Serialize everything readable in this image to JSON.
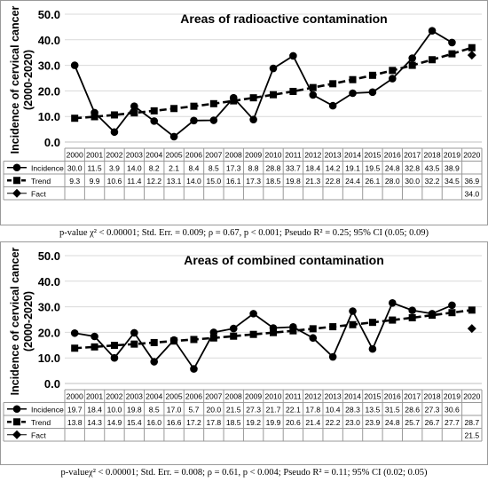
{
  "chart_data": [
    {
      "type": "line",
      "title": "Areas of radioactive contamination",
      "ylabel": "Incidence of cervical cancer (2000-2020)",
      "ylabel_lines": [
        "Incidence of cervical cancer",
        "(2000-2020)"
      ],
      "ylim": [
        0,
        50
      ],
      "yticks": [
        "0.0",
        "10.0",
        "20.0",
        "30.0",
        "40.0",
        "50.0"
      ],
      "categories": [
        "2000",
        "2001",
        "2002",
        "2003",
        "2004",
        "2005",
        "2006",
        "2007",
        "2008",
        "2009",
        "2010",
        "2011",
        "2012",
        "2013",
        "2014",
        "2015",
        "2016",
        "2017",
        "2018",
        "2019",
        "2020"
      ],
      "series": [
        {
          "name": "Incidence",
          "marker": "circle",
          "line": "solid",
          "values": [
            30.0,
            11.5,
            3.9,
            14.0,
            8.2,
            2.1,
            8.4,
            8.5,
            17.3,
            8.8,
            28.8,
            33.7,
            18.4,
            14.2,
            19.1,
            19.5,
            24.8,
            32.8,
            43.5,
            38.9,
            null
          ],
          "labels": [
            "30.0",
            "11.5",
            "3.9",
            "14.0",
            "8.2",
            "2.1",
            "8.4",
            "8.5",
            "17.3",
            "8.8",
            "28.8",
            "33.7",
            "18.4",
            "14.2",
            "19.1",
            "19.5",
            "24.8",
            "32.8",
            "43.5",
            "38.9",
            ""
          ]
        },
        {
          "name": "Trend",
          "marker": "square",
          "line": "dashed",
          "values": [
            9.3,
            9.9,
            10.6,
            11.4,
            12.2,
            13.1,
            14.0,
            15.0,
            16.1,
            17.3,
            18.5,
            19.8,
            21.3,
            22.8,
            24.4,
            26.1,
            28.0,
            30.0,
            32.2,
            34.5,
            36.9
          ],
          "labels": [
            "9.3",
            "9.9",
            "10.6",
            "11.4",
            "12.2",
            "13.1",
            "14.0",
            "15.0",
            "16.1",
            "17.3",
            "18.5",
            "19.8",
            "21.3",
            "22.8",
            "24.4",
            "26.1",
            "28.0",
            "30.0",
            "32.2",
            "34.5",
            "36.9"
          ]
        },
        {
          "name": "Fact",
          "marker": "diamond",
          "line": "none",
          "values": [
            null,
            null,
            null,
            null,
            null,
            null,
            null,
            null,
            null,
            null,
            null,
            null,
            null,
            null,
            null,
            null,
            null,
            null,
            null,
            null,
            34.0
          ],
          "labels": [
            "",
            "",
            "",
            "",
            "",
            "",
            "",
            "",
            "",
            "",
            "",
            "",
            "",
            "",
            "",
            "",
            "",
            "",
            "",
            "",
            "34.0"
          ]
        }
      ],
      "grid": true,
      "legend": "table-below"
    },
    {
      "type": "line",
      "title": "Areas of combined contamination",
      "ylabel": "Incidence of cervical cancer (2000-2020)",
      "ylabel_lines": [
        "Incidence of cervical cancer",
        "(2000-2020)"
      ],
      "ylim": [
        0,
        50
      ],
      "yticks": [
        "0.0",
        "10.0",
        "20.0",
        "30.0",
        "40.0",
        "50.0"
      ],
      "categories": [
        "2000",
        "2001",
        "2002",
        "2003",
        "2004",
        "2005",
        "2006",
        "2007",
        "2008",
        "2009",
        "2010",
        "2011",
        "2012",
        "2013",
        "2014",
        "2015",
        "2016",
        "2017",
        "2018",
        "2019",
        "2020"
      ],
      "series": [
        {
          "name": "Incidence",
          "marker": "circle",
          "line": "solid",
          "values": [
            19.7,
            18.4,
            10.0,
            19.8,
            8.5,
            17.0,
            5.7,
            20.0,
            21.5,
            27.3,
            21.7,
            22.1,
            17.8,
            10.4,
            28.3,
            13.5,
            31.5,
            28.6,
            27.3,
            30.6,
            null
          ],
          "labels": [
            "19.7",
            "18.4",
            "10.0",
            "19.8",
            "8.5",
            "17.0",
            "5.7",
            "20.0",
            "21.5",
            "27.3",
            "21.7",
            "22.1",
            "17.8",
            "10.4",
            "28.3",
            "13.5",
            "31.5",
            "28.6",
            "27.3",
            "30.6",
            ""
          ]
        },
        {
          "name": "Trend",
          "marker": "square",
          "line": "dashed",
          "values": [
            13.8,
            14.3,
            14.9,
            15.4,
            16.0,
            16.6,
            17.2,
            17.8,
            18.5,
            19.2,
            19.9,
            20.6,
            21.4,
            22.2,
            23.0,
            23.9,
            24.8,
            25.7,
            26.7,
            27.7,
            28.7
          ],
          "labels": [
            "13.8",
            "14.3",
            "14.9",
            "15.4",
            "16.0",
            "16.6",
            "17.2",
            "17.8",
            "18.5",
            "19.2",
            "19.9",
            "20.6",
            "21.4",
            "22.2",
            "23.0",
            "23.9",
            "24.8",
            "25.7",
            "26.7",
            "27.7",
            "28.7"
          ]
        },
        {
          "name": "Fact",
          "marker": "diamond",
          "line": "none",
          "values": [
            null,
            null,
            null,
            null,
            null,
            null,
            null,
            null,
            null,
            null,
            null,
            null,
            null,
            null,
            null,
            null,
            null,
            null,
            null,
            null,
            21.5
          ],
          "labels": [
            "",
            "",
            "",
            "",
            "",
            "",
            "",
            "",
            "",
            "",
            "",
            "",
            "",
            "",
            "",
            "",
            "",
            "",
            "",
            "",
            "21.5"
          ]
        }
      ],
      "grid": true,
      "legend": "table-below"
    }
  ],
  "captions": [
    "p-value χ² < 0.00001; Std. Err. = 0.009; ρ = 0.67, p < 0.001; Pseudo R² = 0.25; 95% CI (0.05; 0.09)",
    "p-valueχ² < 0.00001; Std. Err. = 0.008; ρ = 0.61, p < 0.004; Pseudo R² = 0.11; 95% CI (0.02; 0.05)"
  ]
}
